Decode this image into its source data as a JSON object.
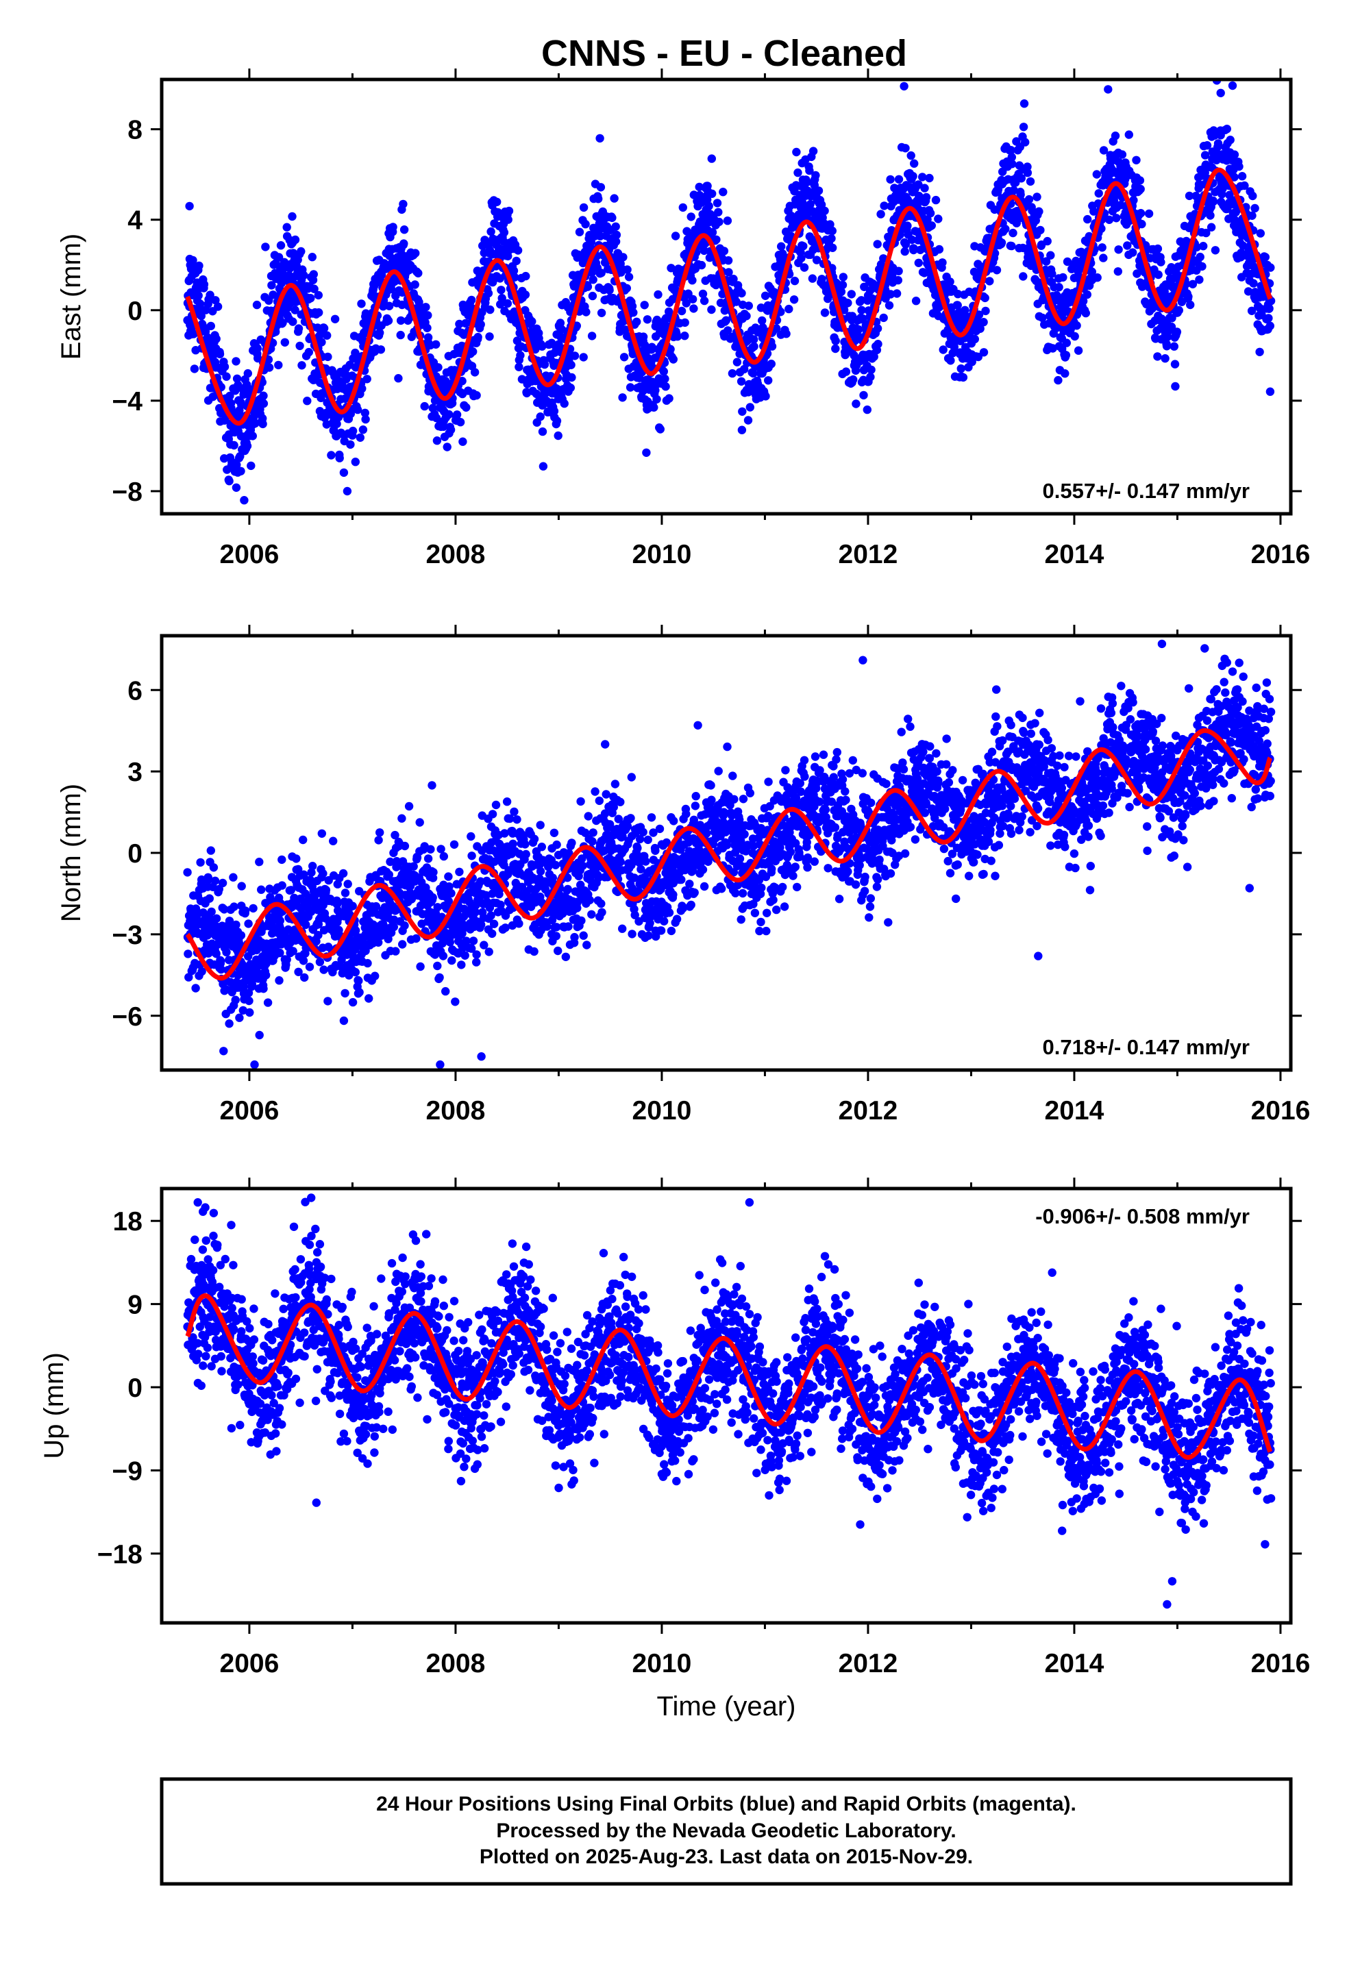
{
  "title": "CNNS  - EU - Cleaned",
  "chart_data": [
    {
      "type": "scatter",
      "panel": "east",
      "ylabel": "East (mm)",
      "xlabel": "",
      "ylim": [
        -9,
        10.2
      ],
      "xlim": [
        2005.15,
        2016.1
      ],
      "yticks": [
        -8,
        -4,
        0,
        4,
        8
      ],
      "yticklabels": [
        "−8",
        "−4",
        "0",
        "4",
        "8"
      ],
      "xticks": [
        2006,
        2008,
        2010,
        2012,
        2014,
        2016
      ],
      "xticklabels": [
        "2006",
        "2008",
        "2010",
        "2012",
        "2014",
        "2016"
      ],
      "rate_text": "0.557+/- 0.147 mm/yr",
      "rate_position": "bottom-right",
      "series": [
        {
          "role": "daily positions (final orbits)",
          "marker": "dot",
          "color": "#0000ff",
          "x_range": [
            2005.4,
            2015.91
          ],
          "model": {
            "offset": -2.3,
            "trend": 0.557,
            "trend_ref": 2005.4,
            "annual_amplitude": 3.1,
            "annual_peak": 0.4,
            "scatter": 1.2
          },
          "points": [
            [
              2005.42,
              4.6
            ],
            [
              2005.8,
              -7.5
            ],
            [
              2005.95,
              -8.4
            ],
            [
              2006.95,
              -8.0
            ],
            [
              2008.85,
              -6.9
            ],
            [
              2009.4,
              7.6
            ],
            [
              2009.85,
              -6.3
            ],
            [
              2012.35,
              9.9
            ],
            [
              2015.42,
              9.6
            ],
            [
              2015.9,
              -3.6
            ]
          ]
        },
        {
          "role": "model fit",
          "type": "line",
          "color": "#ff0000",
          "x": [
            2005.4,
            2005.9,
            2006.4,
            2006.9,
            2007.4,
            2007.9,
            2008.4,
            2008.9,
            2009.4,
            2009.9,
            2010.4,
            2010.9,
            2011.4,
            2011.9,
            2012.4,
            2012.9,
            2013.4,
            2013.9,
            2014.4,
            2014.9,
            2015.4,
            2015.9
          ],
          "y": [
            0.6,
            -5.0,
            1.1,
            -4.5,
            1.7,
            -3.9,
            2.2,
            -3.3,
            2.8,
            -2.8,
            3.3,
            -2.3,
            3.9,
            -1.7,
            4.5,
            -1.1,
            5.0,
            -0.6,
            5.6,
            0.0,
            6.2,
            0.5
          ]
        }
      ]
    },
    {
      "type": "scatter",
      "panel": "north",
      "ylabel": "North (mm)",
      "xlabel": "",
      "ylim": [
        -8,
        8
      ],
      "xlim": [
        2005.15,
        2016.1
      ],
      "yticks": [
        -6,
        -3,
        0,
        3,
        6
      ],
      "yticklabels": [
        "−6",
        "−3",
        "0",
        "3",
        "6"
      ],
      "xticks": [
        2006,
        2008,
        2010,
        2012,
        2014,
        2016
      ],
      "xticklabels": [
        "2006",
        "2008",
        "2010",
        "2012",
        "2014",
        "2016"
      ],
      "rate_text": "0.718+/- 0.147 mm/yr",
      "rate_position": "bottom-right",
      "series": [
        {
          "role": "daily positions (final orbits)",
          "marker": "dot",
          "color": "#0000ff",
          "x_range": [
            2005.4,
            2015.91
          ],
          "model": {
            "offset": -3.6,
            "trend": 0.718,
            "trend_ref": 2005.4,
            "annual_amplitude": 0.85,
            "annual_peak": 0.5,
            "scatter": 1.05
          },
          "points": [
            [
              2005.6,
              -1.0
            ],
            [
              2005.75,
              -7.3
            ],
            [
              2006.05,
              -7.8
            ],
            [
              2007.85,
              -7.8
            ],
            [
              2008.25,
              -7.5
            ],
            [
              2009.45,
              4.0
            ],
            [
              2010.35,
              4.7
            ],
            [
              2011.95,
              7.1
            ],
            [
              2013.65,
              -3.8
            ],
            [
              2014.85,
              7.7
            ],
            [
              2015.6,
              7.0
            ],
            [
              2015.7,
              -1.3
            ]
          ]
        },
        {
          "role": "model fit",
          "type": "line",
          "color": "#ff0000",
          "x": [
            2005.4,
            2005.75,
            2006.25,
            2006.75,
            2007.25,
            2007.75,
            2008.25,
            2008.75,
            2009.25,
            2009.75,
            2010.25,
            2010.75,
            2011.25,
            2011.75,
            2012.25,
            2012.75,
            2013.25,
            2013.75,
            2014.25,
            2014.75,
            2015.25,
            2015.75,
            2015.9
          ],
          "y": [
            -3.0,
            -4.6,
            -1.9,
            -3.8,
            -1.2,
            -3.1,
            -0.5,
            -2.4,
            0.2,
            -1.7,
            0.9,
            -1.0,
            1.6,
            -0.3,
            2.3,
            0.4,
            3.0,
            1.1,
            3.8,
            1.8,
            4.5,
            2.6,
            3.5
          ]
        }
      ]
    },
    {
      "type": "scatter",
      "panel": "up",
      "ylabel": "Up (mm)",
      "xlabel": "Time (year)",
      "ylim": [
        -25.5,
        21.5
      ],
      "xlim": [
        2005.15,
        2016.1
      ],
      "yticks": [
        -18,
        -9,
        0,
        9,
        18
      ],
      "yticklabels": [
        "−18",
        "−9",
        "0",
        "9",
        "18"
      ],
      "xticks": [
        2006,
        2008,
        2010,
        2012,
        2014,
        2016
      ],
      "xticklabels": [
        "2006",
        "2008",
        "2010",
        "2012",
        "2014",
        "2016"
      ],
      "rate_text": "-0.906+/- 0.508 mm/yr",
      "rate_position": "top-right",
      "series": [
        {
          "role": "daily positions (final orbits)",
          "marker": "dot",
          "color": "#0000ff",
          "x_range": [
            2005.4,
            2015.91
          ],
          "model": {
            "offset": 5.3,
            "trend": -0.906,
            "trend_ref": 2005.4,
            "annual_amplitude": 4.6,
            "annual_peak": 0.6,
            "scatter": 3.6
          },
          "points": [
            [
              2005.5,
              20.0
            ],
            [
              2005.55,
              19.0
            ],
            [
              2006.6,
              20.5
            ],
            [
              2006.65,
              -12.5
            ],
            [
              2010.85,
              20.0
            ],
            [
              2014.9,
              -23.5
            ],
            [
              2014.95,
              -21.0
            ],
            [
              2015.85,
              -17.0
            ]
          ]
        },
        {
          "role": "model fit",
          "type": "line",
          "color": "#ff0000",
          "x": [
            2005.4,
            2005.6,
            2006.1,
            2006.6,
            2007.1,
            2007.6,
            2008.1,
            2008.6,
            2009.1,
            2009.6,
            2010.1,
            2010.6,
            2011.1,
            2011.6,
            2012.1,
            2012.6,
            2013.1,
            2013.6,
            2014.1,
            2014.6,
            2015.1,
            2015.6,
            2015.9
          ],
          "y": [
            5.5,
            9.8,
            0.5,
            8.9,
            -0.4,
            8.0,
            -1.3,
            7.1,
            -2.2,
            6.2,
            -3.1,
            5.3,
            -4.0,
            4.4,
            -4.9,
            3.5,
            -5.8,
            2.6,
            -6.7,
            1.7,
            -7.6,
            0.8,
            -7.0
          ]
        }
      ]
    }
  ],
  "footer": {
    "line1": "24 Hour Positions Using Final Orbits (blue) and Rapid Orbits (magenta).",
    "line2": "Processed by the Nevada Geodetic Laboratory.",
    "line3": "Plotted on 2025-Aug-23. Last data on 2015-Nov-29."
  }
}
